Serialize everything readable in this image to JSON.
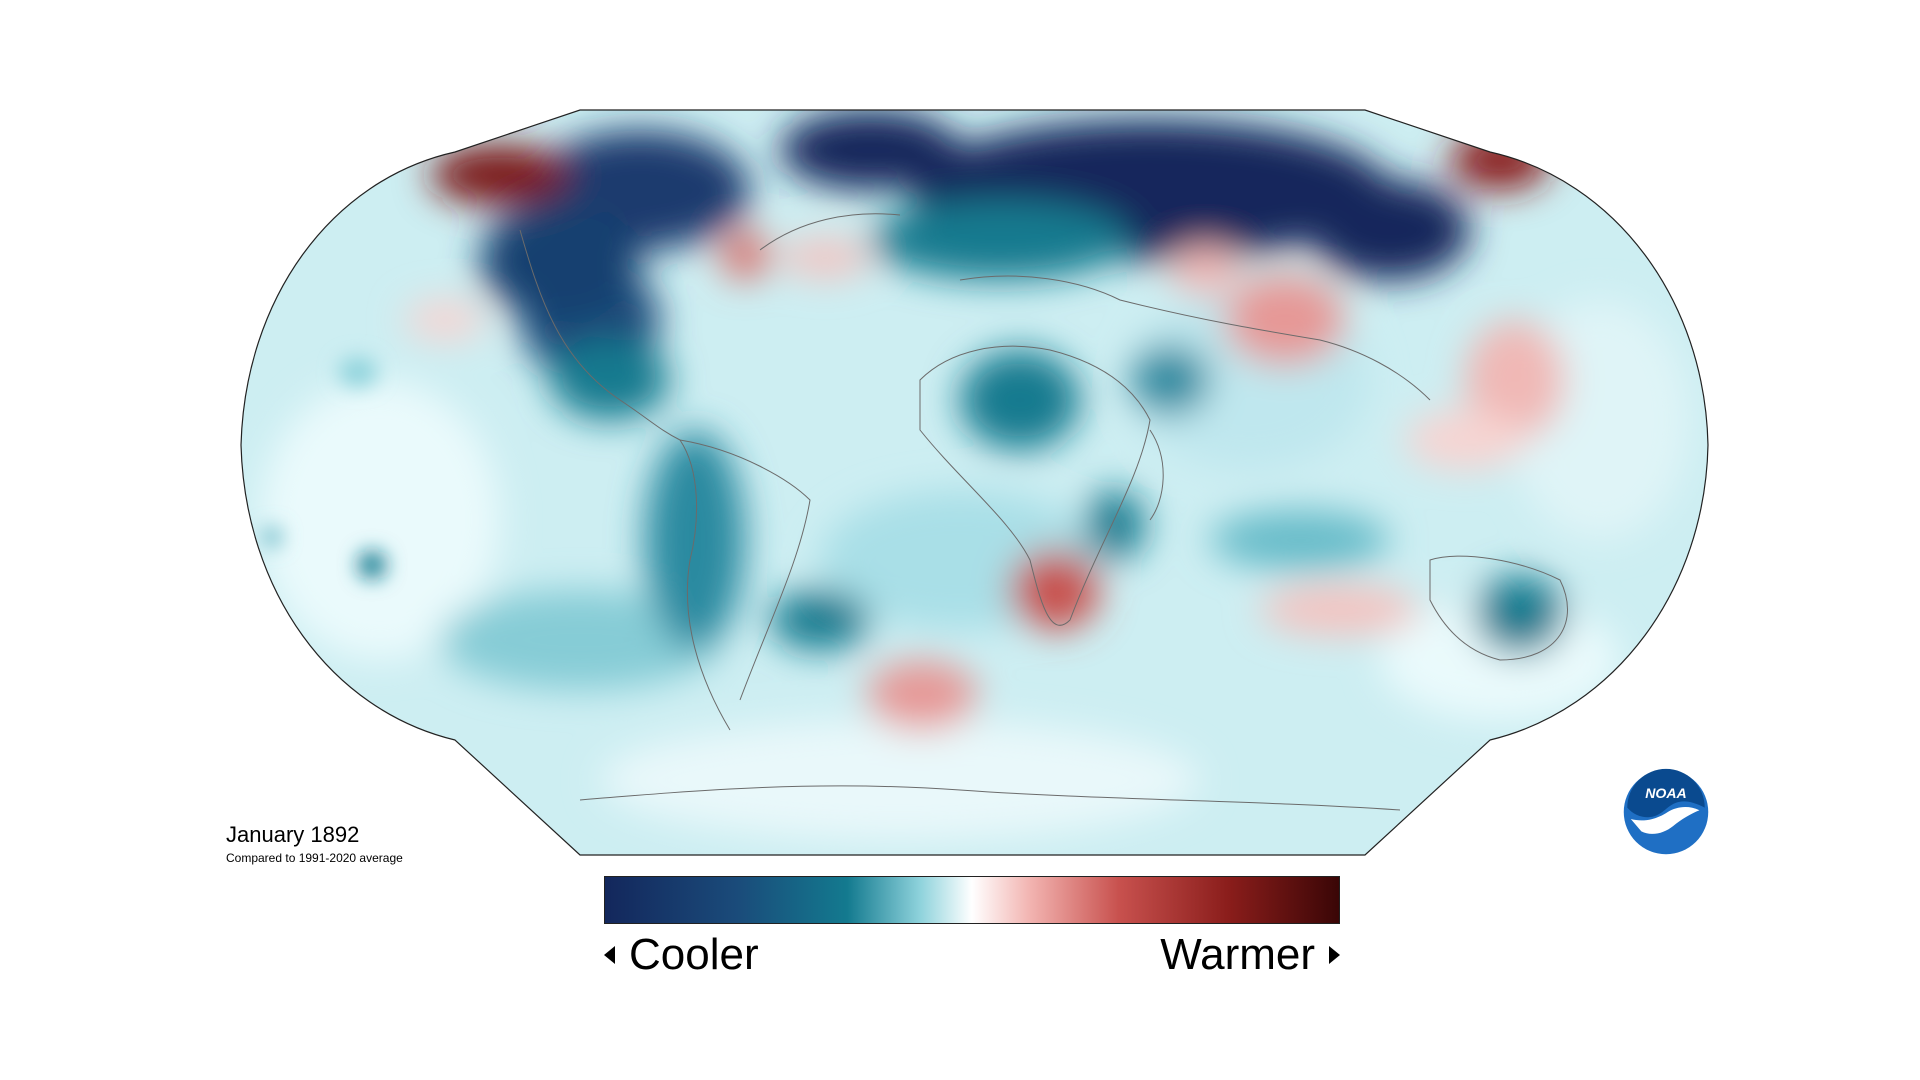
{
  "map": {
    "projection": "robinson",
    "subject": "global surface temperature anomaly",
    "palette": {
      "cold_dark": "#13275c",
      "cold_mid": "#137a8f",
      "cold_light": "#8fd3dc",
      "neutral": "#f4fbfc",
      "warm_light": "#f2b3b0",
      "warm_mid": "#c8514e",
      "warm_dark": "#5b0b0b",
      "coastline": "#6b6b6b"
    },
    "caption": {
      "title": "January 1892",
      "subtitle": "Compared to 1991-2020 average"
    }
  },
  "colorbar": {
    "left_label": "Cooler",
    "right_label": "Warmer",
    "left_icon": "triangle-left-icon",
    "right_icon": "triangle-right-icon"
  },
  "logo": {
    "text": "NOAA",
    "icon": "noaa-logo-icon",
    "colors": {
      "sky": "#0a4a8f",
      "ring": "#1f6fc4",
      "bird": "#ffffff"
    }
  }
}
